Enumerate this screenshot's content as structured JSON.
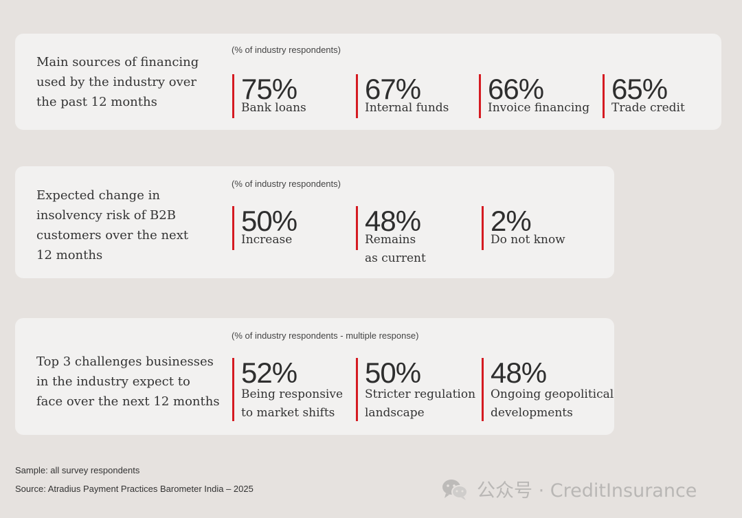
{
  "panels": [
    {
      "title_lines": [
        "Main sources of financing",
        "used by the industry over",
        "the past 12 months"
      ],
      "note": "(% of industry respondents)",
      "stats": [
        {
          "value": "75%",
          "label_lines": [
            "Bank loans"
          ]
        },
        {
          "value": "67%",
          "label_lines": [
            "Internal funds"
          ]
        },
        {
          "value": "66%",
          "label_lines": [
            "Invoice financing"
          ]
        },
        {
          "value": "65%",
          "label_lines": [
            "Trade credit"
          ]
        }
      ]
    },
    {
      "title_lines": [
        "Expected change in",
        "insolvency risk of B2B",
        "customers over the next",
        "12 months"
      ],
      "note": "(% of industry respondents)",
      "stats": [
        {
          "value": "50%",
          "label_lines": [
            "Increase"
          ]
        },
        {
          "value": "48%",
          "label_lines": [
            "Remains",
            "as current"
          ]
        },
        {
          "value": "2%",
          "label_lines": [
            "Do not know"
          ]
        }
      ]
    },
    {
      "title_lines": [
        "Top 3 challenges businesses",
        "in the industry expect to",
        "face over the next 12 months"
      ],
      "note": "(% of industry respondents - multiple response)",
      "stats": [
        {
          "value": "52%",
          "label_lines": [
            "Being responsive",
            "to market shifts"
          ]
        },
        {
          "value": "50%",
          "label_lines": [
            "Stricter regulation",
            "landscape"
          ]
        },
        {
          "value": "48%",
          "label_lines": [
            "Ongoing geopolitical",
            "developments"
          ]
        }
      ]
    }
  ],
  "footer": {
    "sample": "Sample: all survey respondents",
    "source": "Source: Atradius Payment Practices Barometer India – 2025"
  },
  "watermark": {
    "icon": "wechat-icon",
    "text": "公众号 · CreditInsurance"
  },
  "colors": {
    "accent": "#d51a21",
    "panel": "#f2f1f0",
    "background": "#e6e2df"
  }
}
